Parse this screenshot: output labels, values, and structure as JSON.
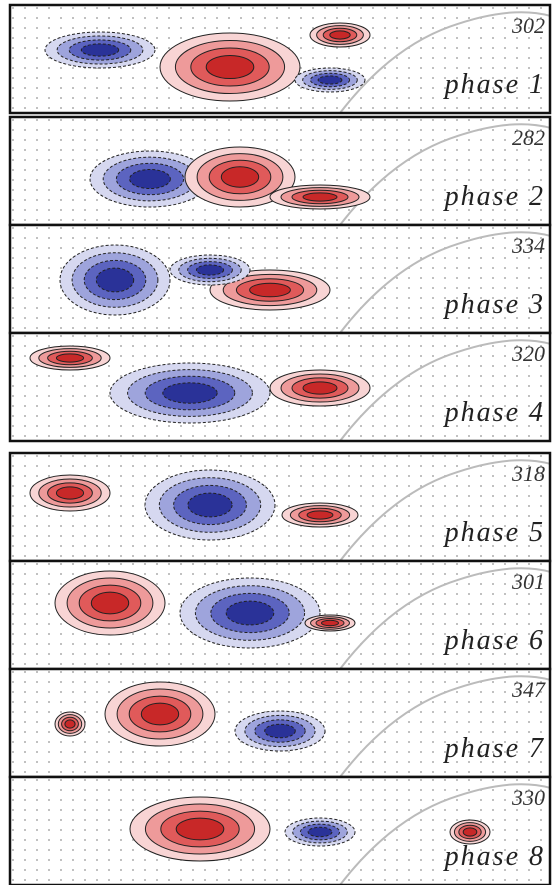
{
  "panels": [
    {
      "count": 302,
      "label": "phase 1"
    },
    {
      "count": 282,
      "label": "phase 2"
    },
    {
      "count": 334,
      "label": "phase 3"
    },
    {
      "count": 320,
      "label": "phase 4"
    },
    {
      "count": 318,
      "label": "phase 5"
    },
    {
      "count": 301,
      "label": "phase 6"
    },
    {
      "count": 347,
      "label": "phase 7"
    },
    {
      "count": 330,
      "label": "phase 8"
    }
  ]
}
